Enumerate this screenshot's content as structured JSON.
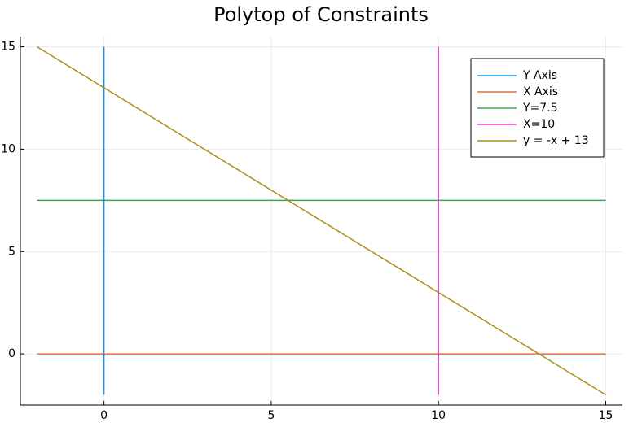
{
  "chart_data": {
    "type": "line",
    "title": "Polytop of Constraints",
    "xlim": [
      -2.5,
      15.5
    ],
    "ylim": [
      -2.5,
      15.5
    ],
    "xticks": [
      0,
      5,
      10,
      15
    ],
    "yticks": [
      0,
      5,
      10,
      15
    ],
    "grid": true,
    "legend": "top-right",
    "series": [
      {
        "name": "Y Axis",
        "color": "#009af9",
        "x": [
          0,
          0
        ],
        "values": [
          -2,
          15
        ]
      },
      {
        "name": "X Axis",
        "color": "#e26f46",
        "x": [
          -2,
          15
        ],
        "values": [
          0,
          0
        ]
      },
      {
        "name": "Y=7.5",
        "color": "#3ea44e",
        "x": [
          -2,
          15
        ],
        "values": [
          7.5,
          7.5
        ]
      },
      {
        "name": "X=10",
        "color": "#e63cc8",
        "x": [
          10,
          10
        ],
        "values": [
          -2,
          15
        ]
      },
      {
        "name": "y = -x + 13",
        "color": "#ac8e18",
        "x": [
          -2,
          15
        ],
        "values": [
          15,
          -2
        ]
      }
    ]
  }
}
